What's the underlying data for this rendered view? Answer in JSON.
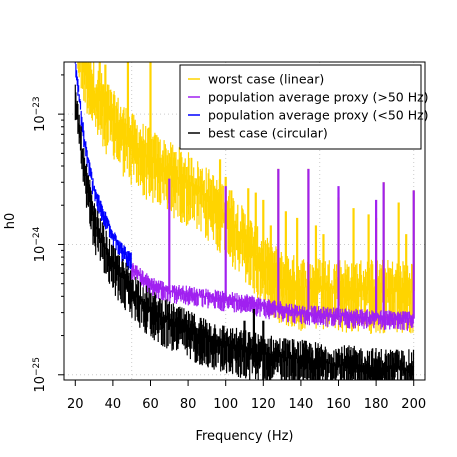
{
  "chart_data": {
    "type": "line",
    "title": "",
    "xlabel": "Frequency (Hz)",
    "ylabel": "h0",
    "xlim": [
      14,
      206
    ],
    "ylim_log10": [
      -25.04,
      -22.6
    ],
    "yscale": "log",
    "x_ticks": [
      20,
      40,
      60,
      80,
      100,
      120,
      140,
      160,
      180,
      200
    ],
    "y_ticks": [
      {
        "value": 1e-25,
        "base": "10",
        "exp": "−25"
      },
      {
        "value": 1e-24,
        "base": "10",
        "exp": "−24"
      },
      {
        "value": 1e-23,
        "base": "10",
        "exp": "−23"
      }
    ],
    "grid": "dotted at x = 50, 100, 150, 200 and y = 1e-25, 1e-24, 1e-23",
    "legend_position": "top-right",
    "series": [
      {
        "name": "worst case (linear)",
        "color": "#ffd400",
        "baseline": [
          [
            20,
            5e-23
          ],
          [
            25,
            2.5e-23
          ],
          [
            30,
            1.5e-23
          ],
          [
            40,
            9e-24
          ],
          [
            50,
            6e-24
          ],
          [
            60,
            4.5e-24
          ],
          [
            70,
            3.6e-24
          ],
          [
            80,
            3e-24
          ],
          [
            90,
            2.3e-24
          ],
          [
            100,
            1.7e-24
          ],
          [
            110,
            1.1e-24
          ],
          [
            120,
            7e-25
          ],
          [
            130,
            5.2e-25
          ],
          [
            140,
            4.7e-25
          ],
          [
            160,
            4.6e-25
          ],
          [
            180,
            4.5e-25
          ],
          [
            200,
            4.4e-25
          ]
        ],
        "spikes": [
          [
            20,
            5e-23
          ],
          [
            22,
            5e-23
          ],
          [
            28,
            5e-23
          ],
          [
            33,
            3e-23
          ],
          [
            36,
            2.4e-23
          ],
          [
            48,
            3.5e-23
          ],
          [
            60,
            5e-23
          ],
          [
            70,
            4.2e-24
          ],
          [
            80,
            3e-24
          ],
          [
            97,
            4.5e-24
          ],
          [
            100,
            3.3e-24
          ],
          [
            103,
            2.6e-24
          ],
          [
            112,
            2.7e-24
          ],
          [
            116,
            2.5e-24
          ],
          [
            120,
            2.2e-24
          ],
          [
            124,
            1.4e-24
          ],
          [
            128,
            3.8e-24
          ],
          [
            132,
            1.8e-24
          ],
          [
            138,
            1.6e-24
          ],
          [
            144,
            3.8e-24
          ],
          [
            148,
            1.4e-24
          ],
          [
            152,
            1.2e-24
          ],
          [
            160,
            2.3e-24
          ],
          [
            168,
            1.9e-24
          ],
          [
            176,
            1.7e-24
          ],
          [
            180,
            1.6e-24
          ],
          [
            184,
            3e-24
          ],
          [
            192,
            2.1e-24
          ],
          [
            196,
            1.2e-24
          ],
          [
            200,
            2.6e-24
          ]
        ]
      },
      {
        "name": "population average proxy (>50 Hz)",
        "color": "#a020f0",
        "baseline": [
          [
            50,
            6.5e-25
          ],
          [
            60,
            5e-25
          ],
          [
            70,
            4.4e-25
          ],
          [
            80,
            4.2e-25
          ],
          [
            90,
            4e-25
          ],
          [
            100,
            3.8e-25
          ],
          [
            110,
            3.7e-25
          ],
          [
            120,
            3.4e-25
          ],
          [
            130,
            3.2e-25
          ],
          [
            140,
            3e-25
          ],
          [
            160,
            2.85e-25
          ],
          [
            180,
            2.75e-25
          ],
          [
            200,
            2.7e-25
          ]
        ],
        "spikes": [
          [
            70,
            3.2e-24
          ],
          [
            100,
            2.8e-24
          ],
          [
            128,
            3.8e-24
          ],
          [
            144,
            3.8e-24
          ],
          [
            160,
            2.8e-24
          ],
          [
            180,
            2.2e-24
          ],
          [
            184,
            3e-24
          ],
          [
            200,
            2.6e-24
          ]
        ]
      },
      {
        "name": "population average proxy (<50 Hz)",
        "color": "#0000ff",
        "baseline": [
          [
            20,
            2.5e-23
          ],
          [
            25,
            6e-24
          ],
          [
            30,
            2.6e-24
          ],
          [
            35,
            1.7e-24
          ],
          [
            40,
            1.2e-24
          ],
          [
            45,
            9e-25
          ],
          [
            50,
            7.5e-25
          ]
        ],
        "spikes": []
      },
      {
        "name": "best case (circular)",
        "color": "#000000",
        "baseline": [
          [
            20,
            1.3e-23
          ],
          [
            25,
            3.5e-24
          ],
          [
            30,
            1.5e-24
          ],
          [
            35,
            1e-24
          ],
          [
            40,
            7e-25
          ],
          [
            50,
            4.5e-25
          ],
          [
            60,
            3.2e-25
          ],
          [
            70,
            2.6e-25
          ],
          [
            80,
            2.2e-25
          ],
          [
            100,
            1.7e-25
          ],
          [
            120,
            1.45e-25
          ],
          [
            150,
            1.25e-25
          ],
          [
            175,
            1.15e-25
          ],
          [
            200,
            1.1e-25
          ]
        ],
        "spikes": [
          [
            110,
            2.6e-25
          ],
          [
            115,
            3.2e-25
          ],
          [
            120,
            2.6e-25
          ]
        ]
      }
    ]
  }
}
